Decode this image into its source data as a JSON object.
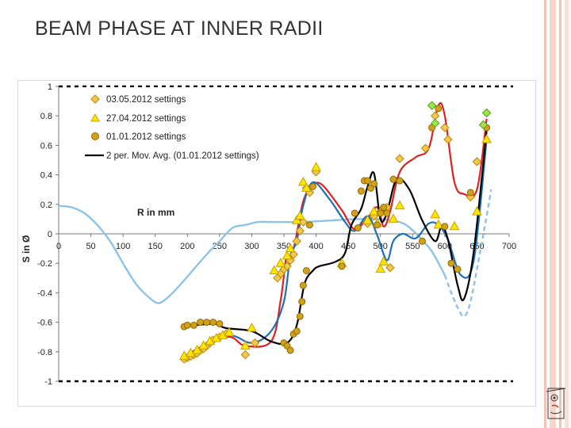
{
  "slide": {
    "title": "BEAM PHASE AT INNER RADII"
  },
  "chart_data": {
    "type": "scatter",
    "title": "",
    "xlabel": "R in mm",
    "ylabel": "S in Ø",
    "xlim": [
      0,
      700
    ],
    "ylim": [
      -1,
      1
    ],
    "x_ticks": [
      0,
      50,
      100,
      150,
      200,
      250,
      300,
      350,
      400,
      450,
      500,
      550,
      600,
      650,
      700
    ],
    "y_ticks": [
      1,
      0.8,
      0.6,
      0.4,
      0.2,
      0,
      -0.2,
      -0.4,
      -0.6,
      -0.8,
      -1
    ],
    "legend_position": "top-left",
    "colors": {
      "s0305": "#f2c94c",
      "s0305_edge": "#b8860b",
      "s2704": "#ffe600",
      "s2704_edge": "#c8a000",
      "s0101": "#d4a017",
      "s0101_edge": "#8a6d0a",
      "green": "#9be84a",
      "red_curve": "#e02020",
      "blue_curve": "#1f6fb5",
      "black_curve": "#000000",
      "light_blue": "#8fc2e8"
    },
    "series": [
      {
        "name": "03.05.2012 settings",
        "marker": "diamond",
        "points": [
          [
            195,
            -0.85
          ],
          [
            200,
            -0.84
          ],
          [
            205,
            -0.83
          ],
          [
            210,
            -0.82
          ],
          [
            215,
            -0.81
          ],
          [
            220,
            -0.79
          ],
          [
            225,
            -0.78
          ],
          [
            230,
            -0.76
          ],
          [
            235,
            -0.74
          ],
          [
            240,
            -0.72
          ],
          [
            250,
            -0.7
          ],
          [
            260,
            -0.68
          ],
          [
            290,
            -0.82
          ],
          [
            305,
            -0.74
          ],
          [
            340,
            -0.3
          ],
          [
            345,
            -0.27
          ],
          [
            350,
            -0.24
          ],
          [
            355,
            -0.22
          ],
          [
            360,
            -0.18
          ],
          [
            365,
            -0.14
          ],
          [
            370,
            -0.05
          ],
          [
            375,
            0.02
          ],
          [
            380,
            0.08
          ],
          [
            385,
            0.31
          ],
          [
            390,
            0.28
          ],
          [
            400,
            0.42
          ],
          [
            480,
            0.07
          ],
          [
            490,
            0.12
          ],
          [
            500,
            0.15
          ],
          [
            510,
            0.18
          ],
          [
            515,
            -0.23
          ],
          [
            530,
            0.51
          ],
          [
            570,
            0.58
          ],
          [
            580,
            0.87
          ],
          [
            585,
            0.8
          ],
          [
            600,
            0.72
          ],
          [
            605,
            0.64
          ],
          [
            640,
            0.25
          ],
          [
            650,
            0.49
          ],
          [
            665,
            0.82
          ]
        ]
      },
      {
        "name": "27.04.2012 settings",
        "marker": "triangle",
        "points": [
          [
            195,
            -0.83
          ],
          [
            205,
            -0.81
          ],
          [
            215,
            -0.79
          ],
          [
            225,
            -0.76
          ],
          [
            235,
            -0.73
          ],
          [
            245,
            -0.71
          ],
          [
            255,
            -0.69
          ],
          [
            265,
            -0.67
          ],
          [
            290,
            -0.76
          ],
          [
            300,
            -0.64
          ],
          [
            335,
            -0.25
          ],
          [
            345,
            -0.2
          ],
          [
            355,
            -0.15
          ],
          [
            360,
            -0.1
          ],
          [
            370,
            0.09
          ],
          [
            375,
            0.12
          ],
          [
            380,
            0.35
          ],
          [
            385,
            0.31
          ],
          [
            400,
            0.45
          ],
          [
            440,
            -0.2
          ],
          [
            480,
            0.09
          ],
          [
            490,
            0.15
          ],
          [
            495,
            0.07
          ],
          [
            500,
            -0.24
          ],
          [
            505,
            -0.19
          ],
          [
            520,
            0.1
          ],
          [
            530,
            0.19
          ],
          [
            585,
            0.13
          ],
          [
            590,
            0.06
          ],
          [
            615,
            0.05
          ],
          [
            650,
            0.15
          ],
          [
            665,
            0.64
          ]
        ]
      },
      {
        "name": "01.01.2012 settings",
        "marker": "circle",
        "points": [
          [
            195,
            -0.63
          ],
          [
            200,
            -0.62
          ],
          [
            210,
            -0.62
          ],
          [
            220,
            -0.6
          ],
          [
            230,
            -0.6
          ],
          [
            240,
            -0.6
          ],
          [
            250,
            -0.61
          ],
          [
            350,
            -0.74
          ],
          [
            355,
            -0.76
          ],
          [
            360,
            -0.79
          ],
          [
            365,
            -0.68
          ],
          [
            370,
            -0.66
          ],
          [
            375,
            -0.56
          ],
          [
            378,
            -0.46
          ],
          [
            380,
            -0.35
          ],
          [
            385,
            -0.25
          ],
          [
            390,
            0.06
          ],
          [
            395,
            0.32
          ],
          [
            440,
            -0.22
          ],
          [
            460,
            0.14
          ],
          [
            465,
            0.04
          ],
          [
            470,
            0.29
          ],
          [
            475,
            0.36
          ],
          [
            480,
            0.36
          ],
          [
            485,
            0.31
          ],
          [
            490,
            0.34
          ],
          [
            495,
            0.06
          ],
          [
            500,
            0.14
          ],
          [
            505,
            0.18
          ],
          [
            510,
            0.14
          ],
          [
            520,
            0.37
          ],
          [
            530,
            0.36
          ],
          [
            565,
            -0.05
          ],
          [
            580,
            0.72
          ],
          [
            590,
            0.85
          ],
          [
            600,
            0.05
          ],
          [
            610,
            -0.2
          ],
          [
            620,
            -0.24
          ],
          [
            640,
            0.28
          ],
          [
            665,
            0.72
          ]
        ]
      },
      {
        "name": "green markers",
        "marker": "diamond-green",
        "points": [
          [
            580,
            0.87
          ],
          [
            585,
            0.75
          ],
          [
            665,
            0.82
          ],
          [
            660,
            0.74
          ]
        ]
      }
    ],
    "curves": [
      {
        "name": "red fit",
        "style": "red",
        "points": [
          [
            195,
            -0.84
          ],
          [
            260,
            -0.7
          ],
          [
            290,
            -0.76
          ],
          [
            330,
            -0.73
          ],
          [
            345,
            -0.45
          ],
          [
            355,
            -0.12
          ],
          [
            365,
            -0.1
          ],
          [
            380,
            0.22
          ],
          [
            395,
            0.33
          ],
          [
            410,
            0.33
          ],
          [
            440,
            0.16
          ],
          [
            460,
            0.03
          ],
          [
            480,
            0.11
          ],
          [
            495,
            0.18
          ],
          [
            505,
            0.05
          ],
          [
            515,
            0.15
          ],
          [
            530,
            0.42
          ],
          [
            555,
            0.52
          ],
          [
            575,
            0.58
          ],
          [
            590,
            0.87
          ],
          [
            600,
            0.8
          ],
          [
            615,
            0.35
          ],
          [
            630,
            0.27
          ],
          [
            650,
            0.3
          ],
          [
            665,
            0.78
          ]
        ]
      },
      {
        "name": "blue fit",
        "style": "blue",
        "points": [
          [
            195,
            -0.83
          ],
          [
            260,
            -0.69
          ],
          [
            300,
            -0.74
          ],
          [
            330,
            -0.66
          ],
          [
            350,
            -0.46
          ],
          [
            360,
            -0.15
          ],
          [
            370,
            -0.05
          ],
          [
            380,
            0.19
          ],
          [
            395,
            0.35
          ],
          [
            420,
            0.24
          ],
          [
            445,
            0.08
          ],
          [
            460,
            0.02
          ],
          [
            480,
            0.12
          ],
          [
            495,
            -0.01
          ],
          [
            510,
            -0.18
          ],
          [
            520,
            -0.05
          ],
          [
            535,
            0.0
          ],
          [
            555,
            -0.03
          ],
          [
            575,
            0.07
          ],
          [
            590,
            0.06
          ],
          [
            605,
            -0.04
          ],
          [
            625,
            -0.28
          ],
          [
            645,
            -0.18
          ],
          [
            665,
            0.64
          ]
        ]
      },
      {
        "name": "2 per. Mov. Avg. (01.01.2012 settings)",
        "style": "black",
        "points": [
          [
            195,
            -0.63
          ],
          [
            240,
            -0.61
          ],
          [
            260,
            -0.64
          ],
          [
            300,
            -0.66
          ],
          [
            330,
            -0.73
          ],
          [
            355,
            -0.74
          ],
          [
            370,
            -0.62
          ],
          [
            382,
            -0.34
          ],
          [
            395,
            -0.25
          ],
          [
            405,
            -0.22
          ],
          [
            430,
            -0.19
          ],
          [
            445,
            -0.13
          ],
          [
            455,
            0.06
          ],
          [
            470,
            0.17
          ],
          [
            480,
            0.32
          ],
          [
            490,
            0.41
          ],
          [
            500,
            0.1
          ],
          [
            510,
            0.14
          ],
          [
            525,
            0.37
          ],
          [
            545,
            0.3
          ],
          [
            565,
            0.09
          ],
          [
            585,
            -0.05
          ],
          [
            595,
            0.05
          ],
          [
            605,
            -0.04
          ],
          [
            620,
            -0.35
          ],
          [
            630,
            -0.44
          ],
          [
            645,
            -0.12
          ],
          [
            665,
            0.7
          ]
        ]
      },
      {
        "name": "light blue curve",
        "style": "light-blue",
        "points": [
          [
            0,
            0.19
          ],
          [
            20,
            0.18
          ],
          [
            40,
            0.14
          ],
          [
            60,
            0.06
          ],
          [
            80,
            -0.05
          ],
          [
            100,
            -0.2
          ],
          [
            120,
            -0.34
          ],
          [
            140,
            -0.43
          ],
          [
            155,
            -0.47
          ],
          [
            170,
            -0.43
          ],
          [
            190,
            -0.34
          ],
          [
            210,
            -0.24
          ],
          [
            230,
            -0.14
          ],
          [
            250,
            -0.05
          ],
          [
            270,
            0.04
          ],
          [
            290,
            0.06
          ],
          [
            310,
            0.08
          ],
          [
            330,
            0.08
          ],
          [
            350,
            0.08
          ],
          [
            380,
            0.08
          ],
          [
            420,
            0.09
          ],
          [
            460,
            0.1
          ],
          [
            500,
            0.1
          ],
          [
            520,
            0.09
          ],
          [
            540,
            0.06
          ],
          [
            560,
            -0.02
          ],
          [
            580,
            -0.12
          ],
          [
            600,
            -0.28
          ],
          [
            610,
            -0.4
          ],
          [
            620,
            -0.5
          ],
          [
            630,
            -0.56
          ],
          [
            640,
            -0.46
          ],
          [
            655,
            -0.12
          ],
          [
            665,
            0.12
          ],
          [
            672,
            0.3
          ]
        ]
      }
    ],
    "legend": {
      "entries": [
        "03.05.2012 settings",
        "27.04.2012 settings",
        "01.01.2012 settings",
        "2 per. Mov. Avg. (01.01.2012 settings)"
      ]
    }
  }
}
